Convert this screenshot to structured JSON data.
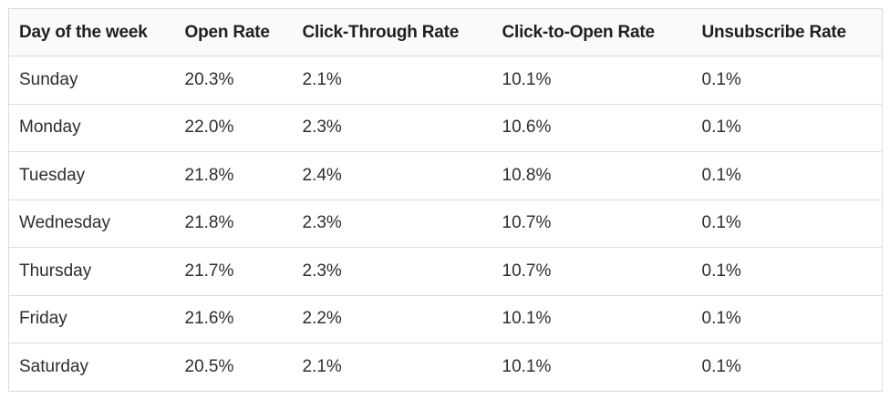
{
  "table": {
    "headers": [
      "Day of the week",
      "Open Rate",
      "Click-Through Rate",
      "Click-to-Open Rate",
      "Unsubscribe Rate"
    ],
    "rows": [
      [
        "Sunday",
        "20.3%",
        "2.1%",
        "10.1%",
        "0.1%"
      ],
      [
        "Monday",
        "22.0%",
        "2.3%",
        "10.6%",
        "0.1%"
      ],
      [
        "Tuesday",
        "21.8%",
        "2.4%",
        "10.8%",
        "0.1%"
      ],
      [
        "Wednesday",
        "21.8%",
        "2.3%",
        "10.7%",
        "0.1%"
      ],
      [
        "Thursday",
        "21.7%",
        "2.3%",
        "10.7%",
        "0.1%"
      ],
      [
        "Friday",
        "21.6%",
        "2.2%",
        "10.1%",
        "0.1%"
      ],
      [
        "Saturday",
        "20.5%",
        "2.1%",
        "10.1%",
        "0.1%"
      ]
    ]
  }
}
